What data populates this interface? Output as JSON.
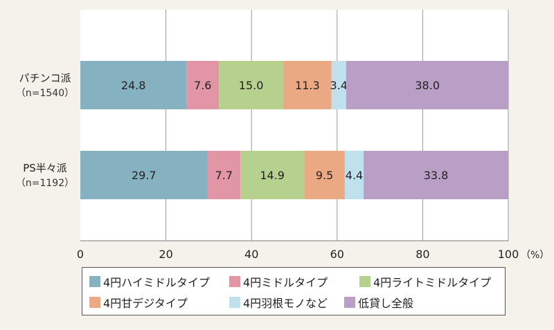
{
  "chart_data": {
    "type": "bar",
    "orientation": "horizontal",
    "stacked": true,
    "categories": [
      {
        "name": "パチンコ派",
        "n": "（n=1540）"
      },
      {
        "name": "PS半々派",
        "n": "（n=1192）"
      }
    ],
    "series": [
      {
        "name": "4円ハイミドルタイプ",
        "color": "#86b1c1",
        "values": [
          24.8,
          29.7
        ]
      },
      {
        "name": "4円ミドルタイプ",
        "color": "#e295a5",
        "values": [
          7.6,
          7.7
        ]
      },
      {
        "name": "4円ライトミドルタイプ",
        "color": "#b6d08d",
        "values": [
          15.0,
          14.9
        ]
      },
      {
        "name": "4円甘デジタイプ",
        "color": "#eba983",
        "values": [
          11.3,
          9.5
        ]
      },
      {
        "name": "4円羽根モノなど",
        "color": "#bfe1ee",
        "values": [
          3.4,
          4.4
        ]
      },
      {
        "name": "低貸し全般",
        "color": "#b99ec5",
        "values": [
          38.0,
          33.8
        ]
      }
    ],
    "xlim": [
      0,
      100
    ],
    "xticks": [
      "0",
      "20",
      "40",
      "60",
      "80",
      "100"
    ],
    "xunit": "（%）",
    "grid": true,
    "legend_position": "bottom"
  }
}
